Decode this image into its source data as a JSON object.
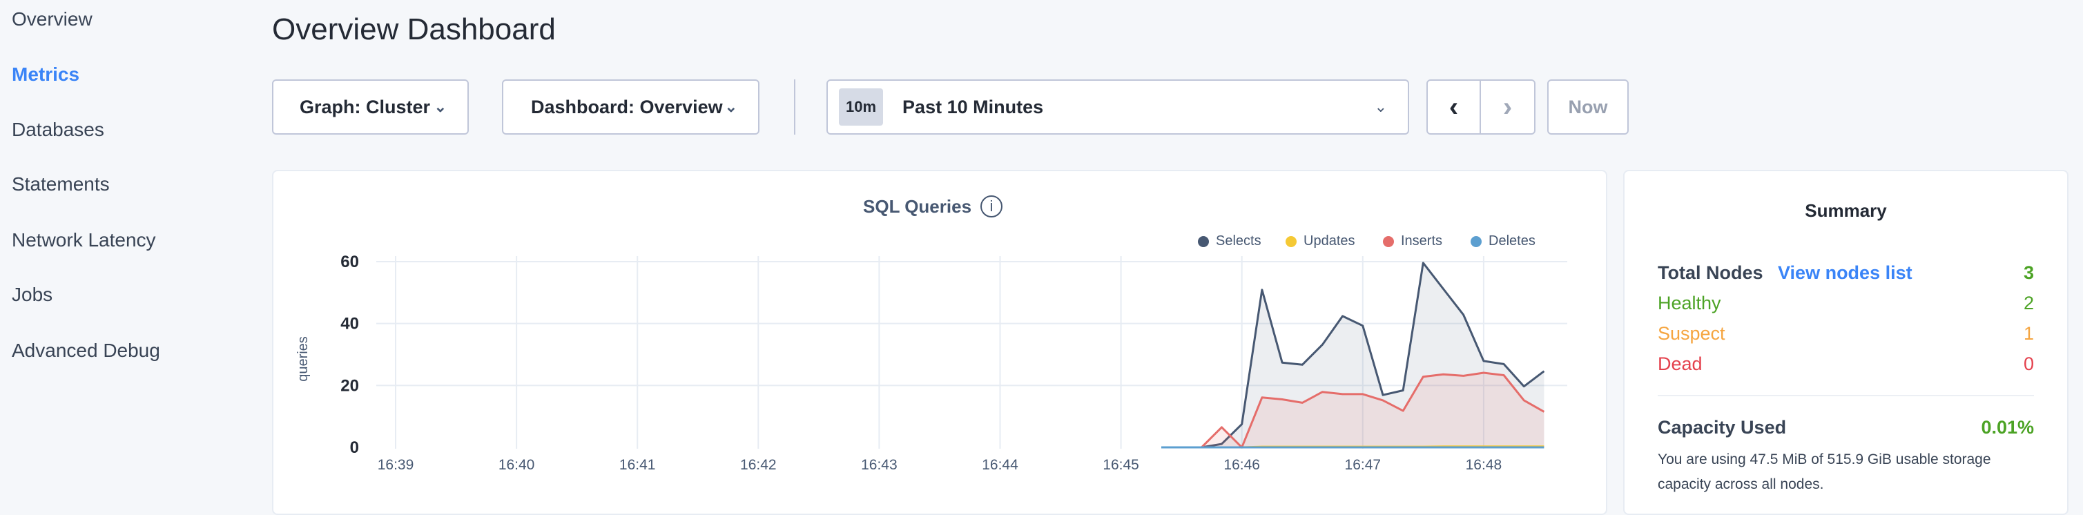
{
  "sidebar": {
    "items": [
      {
        "label": "Overview"
      },
      {
        "label": "Metrics",
        "active": true
      },
      {
        "label": "Databases"
      },
      {
        "label": "Statements"
      },
      {
        "label": "Network Latency"
      },
      {
        "label": "Jobs"
      },
      {
        "label": "Advanced Debug"
      }
    ]
  },
  "header": {
    "title": "Overview Dashboard"
  },
  "controls": {
    "graph": "Graph: Cluster",
    "dashboard": "Dashboard: Overview",
    "time_badge": "10m",
    "time_label": "Past 10 Minutes",
    "now": "Now"
  },
  "chart_data": {
    "type": "area",
    "title": "SQL Queries",
    "ylabel": "queries",
    "ylim": [
      0,
      60
    ],
    "yticks": [
      "0",
      "20",
      "40",
      "60"
    ],
    "xticks": [
      "16:39",
      "16:40",
      "16:41",
      "16:42",
      "16:43",
      "16:44",
      "16:45",
      "16:46",
      "16:47",
      "16:48"
    ],
    "grid": true,
    "legend": "top-right",
    "x": [
      "16:45:20",
      "16:45:30",
      "16:45:40",
      "16:45:50",
      "16:46:00",
      "16:46:10",
      "16:46:20",
      "16:46:30",
      "16:46:40",
      "16:46:50",
      "16:47:00",
      "16:47:10",
      "16:47:20",
      "16:47:30",
      "16:47:40",
      "16:47:50",
      "16:48:00",
      "16:48:10",
      "16:48:20",
      "16:48:30"
    ],
    "series": [
      {
        "name": "Selects",
        "color": "#475872",
        "values": [
          0,
          0,
          0,
          1.1,
          7.5,
          50.9,
          27.4,
          26.7,
          33.2,
          42.4,
          39.3,
          16.9,
          18.4,
          59.6,
          51.2,
          42.8,
          27.9,
          26.9,
          19.7,
          24.6
        ]
      },
      {
        "name": "Updates",
        "color": "#f5c935",
        "values": [
          0,
          0,
          0,
          0,
          0,
          0.2,
          0.2,
          0.2,
          0.2,
          0.2,
          0.2,
          0.2,
          0.2,
          0.2,
          0.3,
          0.3,
          0.3,
          0.3,
          0.3,
          0.3
        ]
      },
      {
        "name": "Inserts",
        "color": "#e56d6a",
        "values": [
          0,
          0,
          0,
          6.5,
          0,
          16.1,
          15.5,
          14.4,
          17.9,
          17.2,
          17.2,
          15.2,
          11.8,
          22.8,
          23.6,
          23.1,
          24.1,
          23.3,
          15.2,
          11.5
        ]
      },
      {
        "name": "Deletes",
        "color": "#5c9fd0",
        "values": [
          0,
          0,
          0,
          0,
          0,
          0,
          0,
          0,
          0,
          0,
          0,
          0,
          0,
          0,
          0,
          0,
          0,
          0,
          0,
          0
        ]
      }
    ]
  },
  "summary": {
    "title": "Summary",
    "total_label": "Total Nodes",
    "view_link": "View nodes list",
    "total": "3",
    "healthy_label": "Healthy",
    "healthy": "2",
    "suspect_label": "Suspect",
    "suspect": "1",
    "dead_label": "Dead",
    "dead": "0",
    "capacity_label": "Capacity Used",
    "capacity": "0.01%",
    "capacity_text": "You are using 47.5 MiB of 515.9 GiB usable storage capacity across all nodes.",
    "colors": {
      "healthy": "#4ca325",
      "suspect": "#f5a540",
      "dead": "#e4414d",
      "link": "#3a84f7"
    }
  }
}
